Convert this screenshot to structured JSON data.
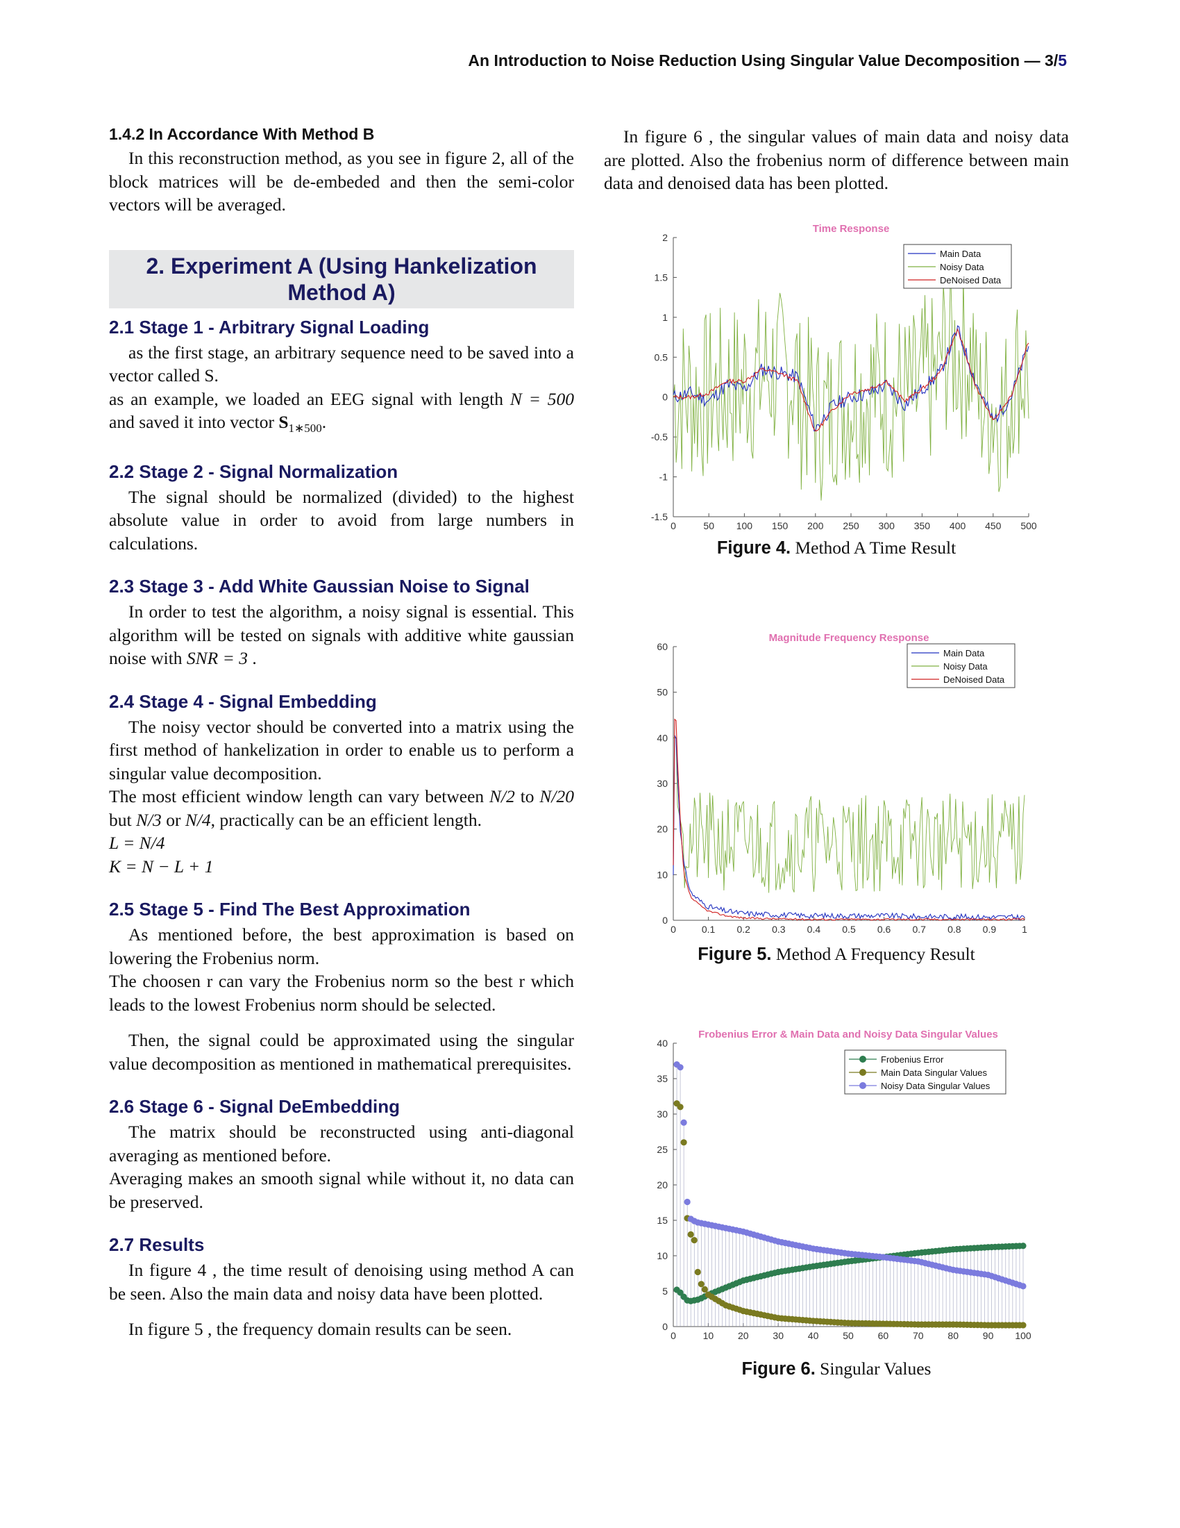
{
  "header": {
    "title_prefix": "An Introduction to Noise Reduction Using Singular Value Decomposition — ",
    "page": "3",
    "total": "5"
  },
  "left": {
    "s142_title": "1.4.2  In Accordance With Method B",
    "s142_p": "In this reconstruction method, as you see in figure 2, all of the block matrices will be de-embeded and then the semi-color vectors will be averaged.",
    "sec2_title": "2. Experiment A (Using Hankelization Method A)",
    "s21_title": "2.1  Stage 1 - Arbitrary Signal Loading",
    "s21_p1": "as the first stage, an arbitrary sequence need to be saved into a vector called S.",
    "s21_p2_a": "as an example, we loaded an EEG signal with length ",
    "s21_p2_N": "N = 500",
    "s21_p2_b": " and saved it into vector ",
    "s21_p2_S": "S",
    "s21_p2_sub": "1∗500",
    "s21_p2_c": ".",
    "s22_title": "2.2  Stage 2 - Signal Normalization",
    "s22_p": "The signal should be normalized (divided) to the highest absolute value in order to avoid from large numbers in calculations.",
    "s23_title": "2.3  Stage 3 - Add White Gaussian Noise to Signal",
    "s23_p_a": "In order to test the algorithm, a noisy signal is essential. This algorithm will be tested on signals with additive white gaussian noise with ",
    "s23_p_snr": "SNR = 3",
    "s23_p_b": " .",
    "s24_title": "2.4  Stage 4 - Signal Embedding",
    "s24_p1": "The noisy vector should be converted into a matrix using the first method of hankelization in order to enable us to perform a singular value decomposition.",
    "s24_p2_a": "The most efficient window length can vary between ",
    "s24_p2_n2": "N/2",
    "s24_p2_b": " to ",
    "s24_p2_n20": "N/20",
    "s24_p2_c": " but ",
    "s24_p2_n3": "N/3",
    "s24_p2_d": " or ",
    "s24_p2_n4": "N/4",
    "s24_p2_e": ", practically can be an efficient length.",
    "s24_eq1": "L = N/4",
    "s24_eq2": "K = N − L + 1",
    "s25_title": "2.5  Stage 5 - Find The Best Approximation",
    "s25_p1": "As mentioned before, the best approximation is based on lowering the Frobenius norm.",
    "s25_p2": "The choosen r can vary the Frobenius norm so the best r which leads to the lowest Frobenius norm should be selected.",
    "s25_p3": "Then, the signal could be approximated using the singular value decomposition as mentioned in mathematical prerequisites.",
    "s26_title": "2.6  Stage 6 - Signal DeEmbedding",
    "s26_p1": "The matrix should be reconstructed using anti-diagonal averaging as mentioned before.",
    "s26_p2": "Averaging makes an smooth signal while without it, no data can be preserved.",
    "s27_title": "2.7  Results",
    "s27_p1": "In figure 4 , the time result of denoising using method A can be seen.  Also the main data and noisy data have been plotted.",
    "s27_p2": "In figure 5 , the frequency domain results can be seen."
  },
  "right": {
    "intro": "In figure 6 , the singular values of main data and noisy data are plotted.  Also the frobenius norm of difference between main data and denoised data has been plotted."
  },
  "figures": {
    "fig4": {
      "label": "Figure 4.",
      "text": " Method A Time Result"
    },
    "fig5": {
      "label": "Figure 5.",
      "text": " Method A Frequency Result"
    },
    "fig6": {
      "label": "Figure 6.",
      "text": " Singular Values"
    }
  },
  "colors": {
    "main": "#2030c0",
    "noisy": "#7fb040",
    "denoised": "#d02020",
    "title_pink": "#e070b0",
    "frob": "#2e7d4f",
    "main_sv": "#7a7a20",
    "noisy_sv": "#7b7bde"
  },
  "chart_data": [
    {
      "id": "fig4",
      "type": "line",
      "title": "Time Response",
      "xlim": [
        0,
        500
      ],
      "ylim": [
        -1.5,
        2
      ],
      "xticks": [
        "0",
        "50",
        "100",
        "150",
        "200",
        "250",
        "300",
        "350",
        "400",
        "450",
        "500"
      ],
      "yticks": [
        "-1.5",
        "-1",
        "-0.5",
        "0",
        "0.5",
        "1",
        "1.5",
        "2"
      ],
      "legend": "top-right",
      "x": [
        0,
        25,
        50,
        75,
        100,
        125,
        150,
        175,
        200,
        225,
        250,
        275,
        300,
        325,
        350,
        375,
        400,
        425,
        450,
        475,
        500
      ],
      "series": [
        {
          "name": "Main Data",
          "values": [
            0.0,
            0.05,
            -0.05,
            0.15,
            0.1,
            0.35,
            0.3,
            0.25,
            -0.4,
            -0.1,
            0.0,
            0.05,
            0.15,
            -0.1,
            0.1,
            0.3,
            0.85,
            0.2,
            -0.3,
            0.0,
            0.65
          ]
        },
        {
          "name": "Noisy Data",
          "values": [
            0.1,
            -0.8,
            0.9,
            -1.0,
            1.3,
            -0.9,
            1.6,
            -1.1,
            0.7,
            -1.4,
            1.0,
            -1.2,
            1.1,
            -1.0,
            0.8,
            -1.3,
            1.3,
            -1.2,
            1.0,
            -1.1,
            1.5
          ]
        },
        {
          "name": "DeNoised Data",
          "values": [
            0.0,
            0.0,
            0.05,
            0.2,
            0.2,
            0.35,
            0.3,
            0.2,
            -0.45,
            -0.15,
            0.05,
            0.1,
            0.2,
            -0.05,
            0.1,
            0.3,
            0.85,
            0.15,
            -0.3,
            0.0,
            0.7
          ]
        }
      ]
    },
    {
      "id": "fig5",
      "type": "line",
      "title": "Magnitude Frequency Response",
      "xlim": [
        0,
        1
      ],
      "ylim": [
        0,
        60
      ],
      "xticks": [
        "0",
        "0.1",
        "0.2",
        "0.3",
        "0.4",
        "0.5",
        "0.6",
        "0.7",
        "0.8",
        "0.9",
        "1"
      ],
      "yticks": [
        "0",
        "10",
        "20",
        "30",
        "40",
        "50",
        "60"
      ],
      "legend": "top-right",
      "x": [
        0,
        0.005,
        0.01,
        0.02,
        0.03,
        0.05,
        0.08,
        0.1,
        0.15,
        0.2,
        0.3,
        0.4,
        0.5,
        0.6,
        0.7,
        0.8,
        0.9,
        1.0
      ],
      "series": [
        {
          "name": "Main Data",
          "values": [
            10,
            48,
            35,
            20,
            12,
            6,
            4,
            3,
            2,
            1.5,
            1.2,
            1,
            1,
            1,
            0.8,
            0.8,
            0.7,
            0.7
          ]
        },
        {
          "name": "Noisy Data",
          "values": [
            12,
            40,
            30,
            18,
            25,
            15,
            22,
            18,
            20,
            15,
            18,
            16,
            20,
            18,
            15,
            22,
            20,
            10
          ]
        },
        {
          "name": "DeNoised Data",
          "values": [
            12,
            52,
            38,
            22,
            10,
            5,
            3,
            2,
            1,
            0.5,
            0.3,
            0.2,
            0.2,
            0.2,
            0.2,
            0.2,
            0.2,
            0.2
          ]
        }
      ]
    },
    {
      "id": "fig6",
      "type": "scatter",
      "title": "Frobenius Error & Main Data and Noisy Data Singular Values",
      "xlim": [
        0,
        100
      ],
      "ylim": [
        0,
        40
      ],
      "xticks": [
        "0",
        "10",
        "20",
        "30",
        "40",
        "50",
        "60",
        "70",
        "80",
        "90",
        "100"
      ],
      "yticks": [
        "0",
        "5",
        "10",
        "15",
        "20",
        "25",
        "30",
        "35",
        "40"
      ],
      "legend": "top-right",
      "x": [
        1,
        2,
        3,
        4,
        5,
        6,
        7,
        8,
        10,
        15,
        20,
        30,
        40,
        50,
        60,
        70,
        80,
        90,
        100
      ],
      "series": [
        {
          "name": "Frobenius Error",
          "values": [
            5.2,
            4.8,
            4.2,
            3.7,
            3.6,
            3.7,
            3.8,
            4.0,
            4.5,
            5.5,
            6.5,
            7.7,
            8.5,
            9.2,
            9.8,
            10.4,
            10.9,
            11.2,
            11.4
          ]
        },
        {
          "name": "Main Data Singular Values",
          "values": [
            31.5,
            31.0,
            26.0,
            15.3,
            13.0,
            12.2,
            7.7,
            6.0,
            4.5,
            3.0,
            2.2,
            1.2,
            0.8,
            0.5,
            0.4,
            0.3,
            0.3,
            0.2,
            0.2
          ]
        },
        {
          "name": "Noisy Data Singular Values",
          "values": [
            37.0,
            36.6,
            28.8,
            17.6,
            15.2,
            14.9,
            14.7,
            14.6,
            14.4,
            13.9,
            13.4,
            12.0,
            11.0,
            10.3,
            9.8,
            9.2,
            8.0,
            7.3,
            5.7
          ]
        }
      ]
    }
  ]
}
